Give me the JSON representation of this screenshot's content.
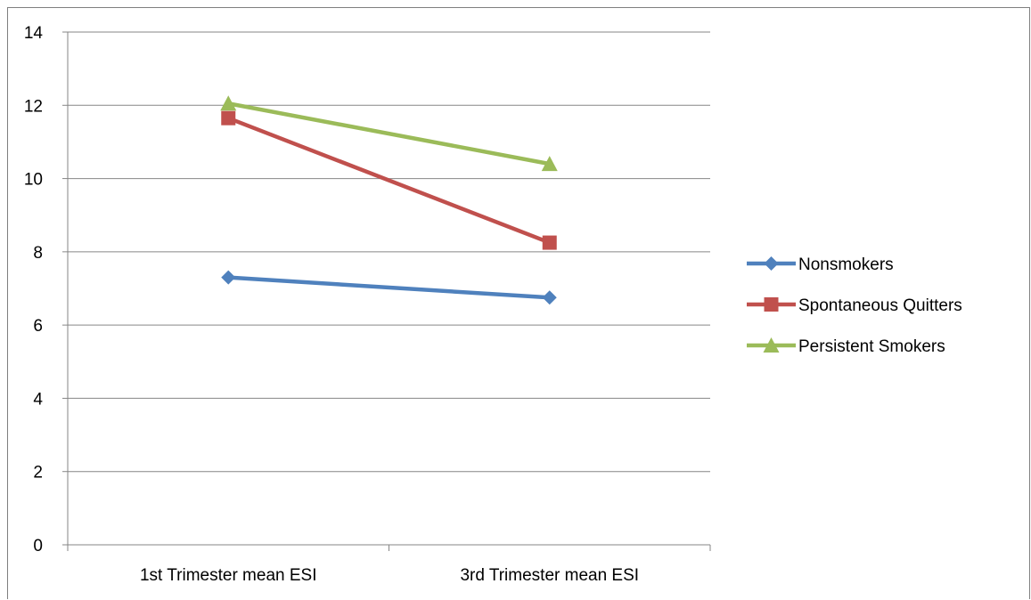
{
  "chart_data": {
    "type": "line",
    "categories": [
      "1st Trimester mean ESI",
      "3rd Trimester mean ESI"
    ],
    "ylim": [
      0,
      14
    ],
    "yticks": [
      0,
      2,
      4,
      6,
      8,
      10,
      12,
      14
    ],
    "grid": true,
    "legend_position": "right",
    "series": [
      {
        "name": "Nonsmokers",
        "values": [
          7.3,
          6.75
        ],
        "color": "#4F81BD",
        "marker": "diamond"
      },
      {
        "name": "Spontaneous Quitters",
        "values": [
          11.65,
          8.25
        ],
        "color": "#C0504D",
        "marker": "square"
      },
      {
        "name": "Persistent Smokers",
        "values": [
          12.05,
          10.4
        ],
        "color": "#9BBB59",
        "marker": "triangle"
      }
    ]
  }
}
